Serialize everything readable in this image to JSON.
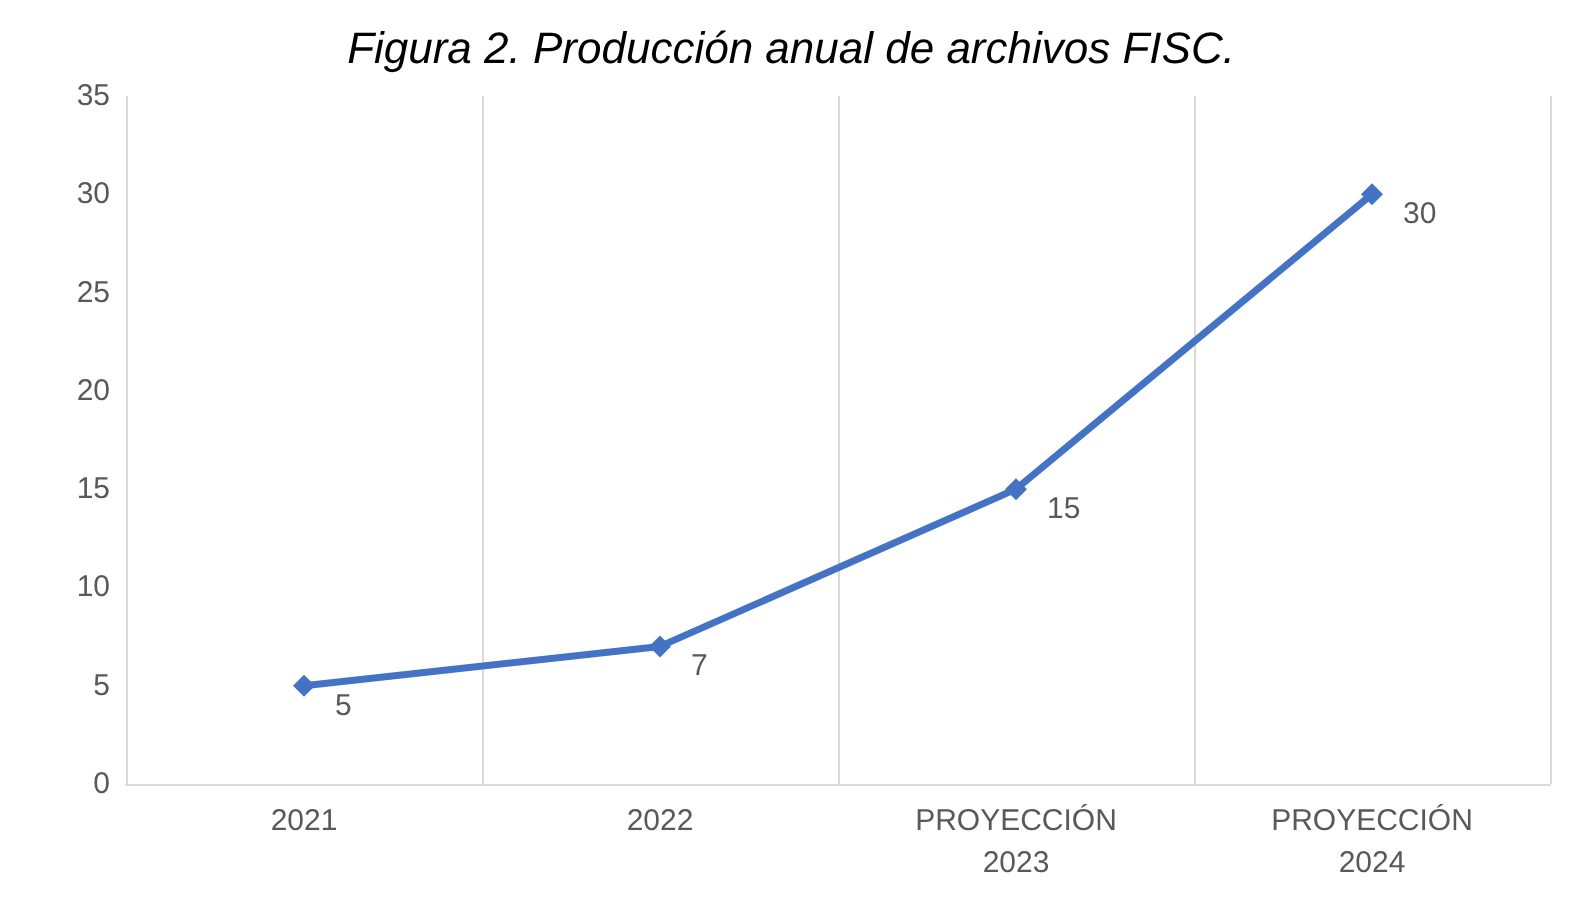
{
  "chart_data": {
    "type": "line",
    "title": "Figura 2. Producción anual de archivos FISC.",
    "categories": [
      "2021",
      "2022",
      "PROYECCIÓN\n2023",
      "PROYECCIÓN\n2024"
    ],
    "series": [
      {
        "color": "#4472c4",
        "values": [
          5,
          7,
          15,
          30
        ]
      }
    ],
    "ylim": [
      0,
      35
    ],
    "yticks": [
      0,
      5,
      10,
      15,
      20,
      25,
      30,
      35
    ],
    "grid": "x",
    "marker": "diamond",
    "line_style": "solid",
    "data_labels": true
  }
}
